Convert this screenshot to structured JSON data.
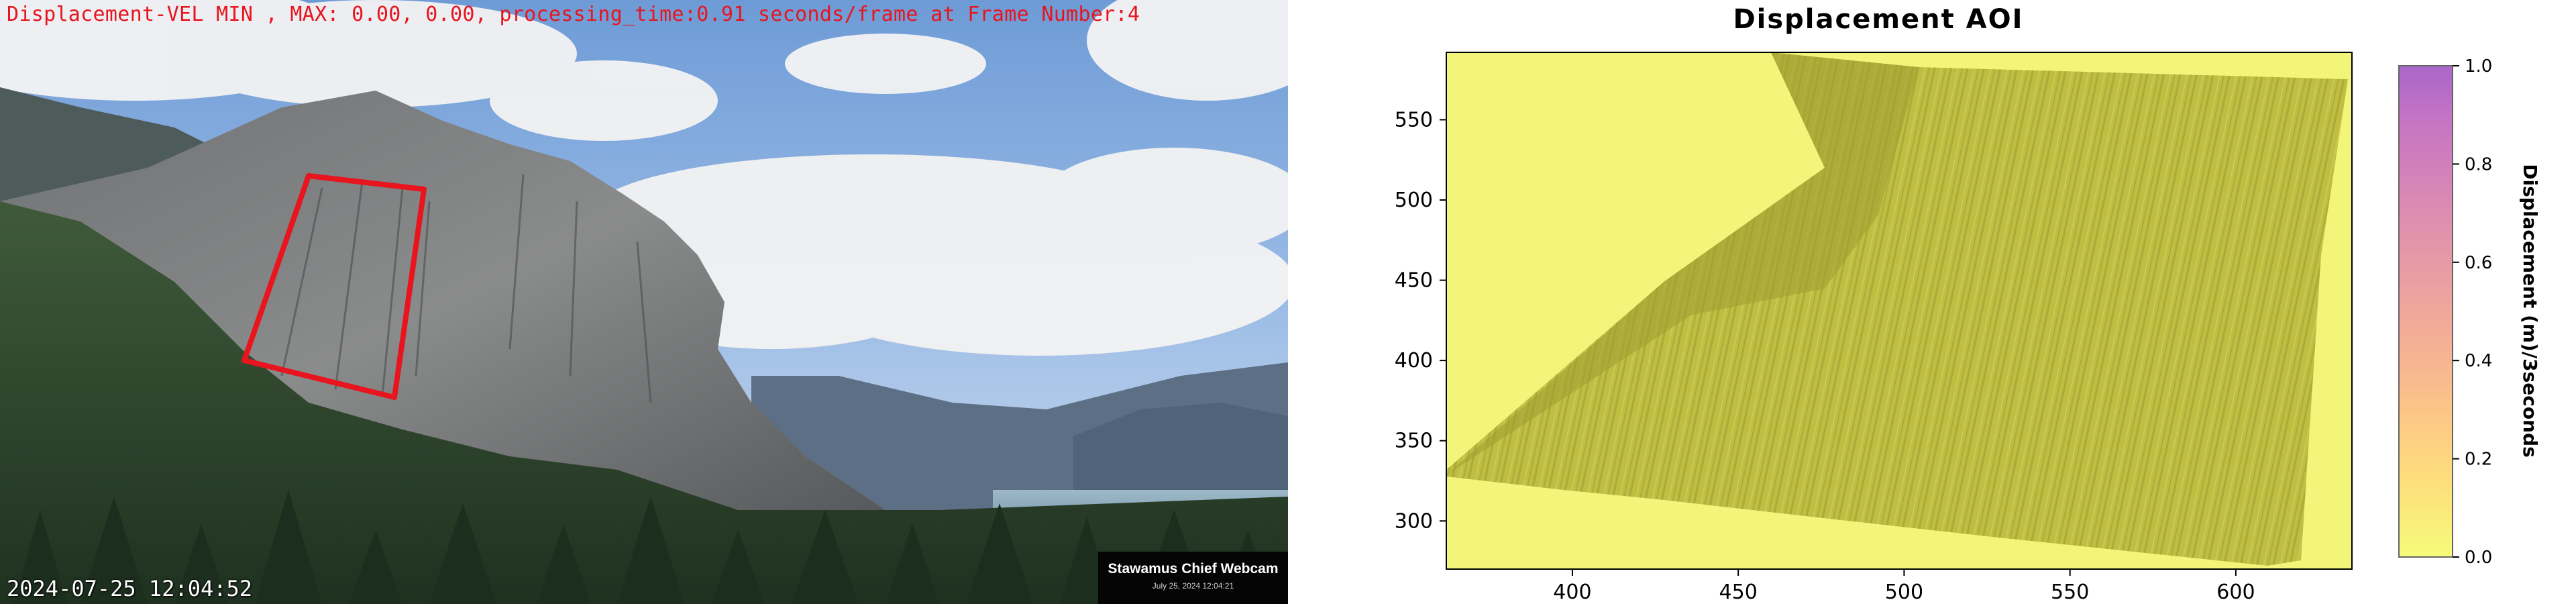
{
  "webcam": {
    "overlay_text": "Displacement-VEL MIN , MAX: 0.00, 0.00, processing_time:0.91 seconds/frame at Frame Number:4",
    "timestamp": "2024-07-25 12:04:52",
    "badge_name": "Stawamus Chief Webcam",
    "badge_date": "July 25, 2024 12:04:21",
    "aoi_color": "#e8141e"
  },
  "plot": {
    "title": "Displacement AOI",
    "colorbar_label": "Displacement (m)/3seconds",
    "colormap": "plasma_r",
    "background_color": "#f3f57a",
    "image_tint": "#b7b63a"
  },
  "chart_data": {
    "type": "heatmap",
    "title": "Displacement AOI",
    "xlabel": "",
    "ylabel": "",
    "xlim": [
      362,
      635
    ],
    "ylim": [
      592,
      270
    ],
    "x_ticks": [
      400,
      450,
      500,
      550,
      600
    ],
    "y_ticks": [
      300,
      350,
      400,
      450,
      500,
      550
    ],
    "colorbar": {
      "label": "Displacement (m)/3seconds",
      "range": [
        0.0,
        1.0
      ],
      "ticks": [
        "0.0",
        "0.2",
        "0.4",
        "0.6",
        "0.8",
        "1.0"
      ]
    },
    "min": 0.0,
    "max": 0.0
  }
}
